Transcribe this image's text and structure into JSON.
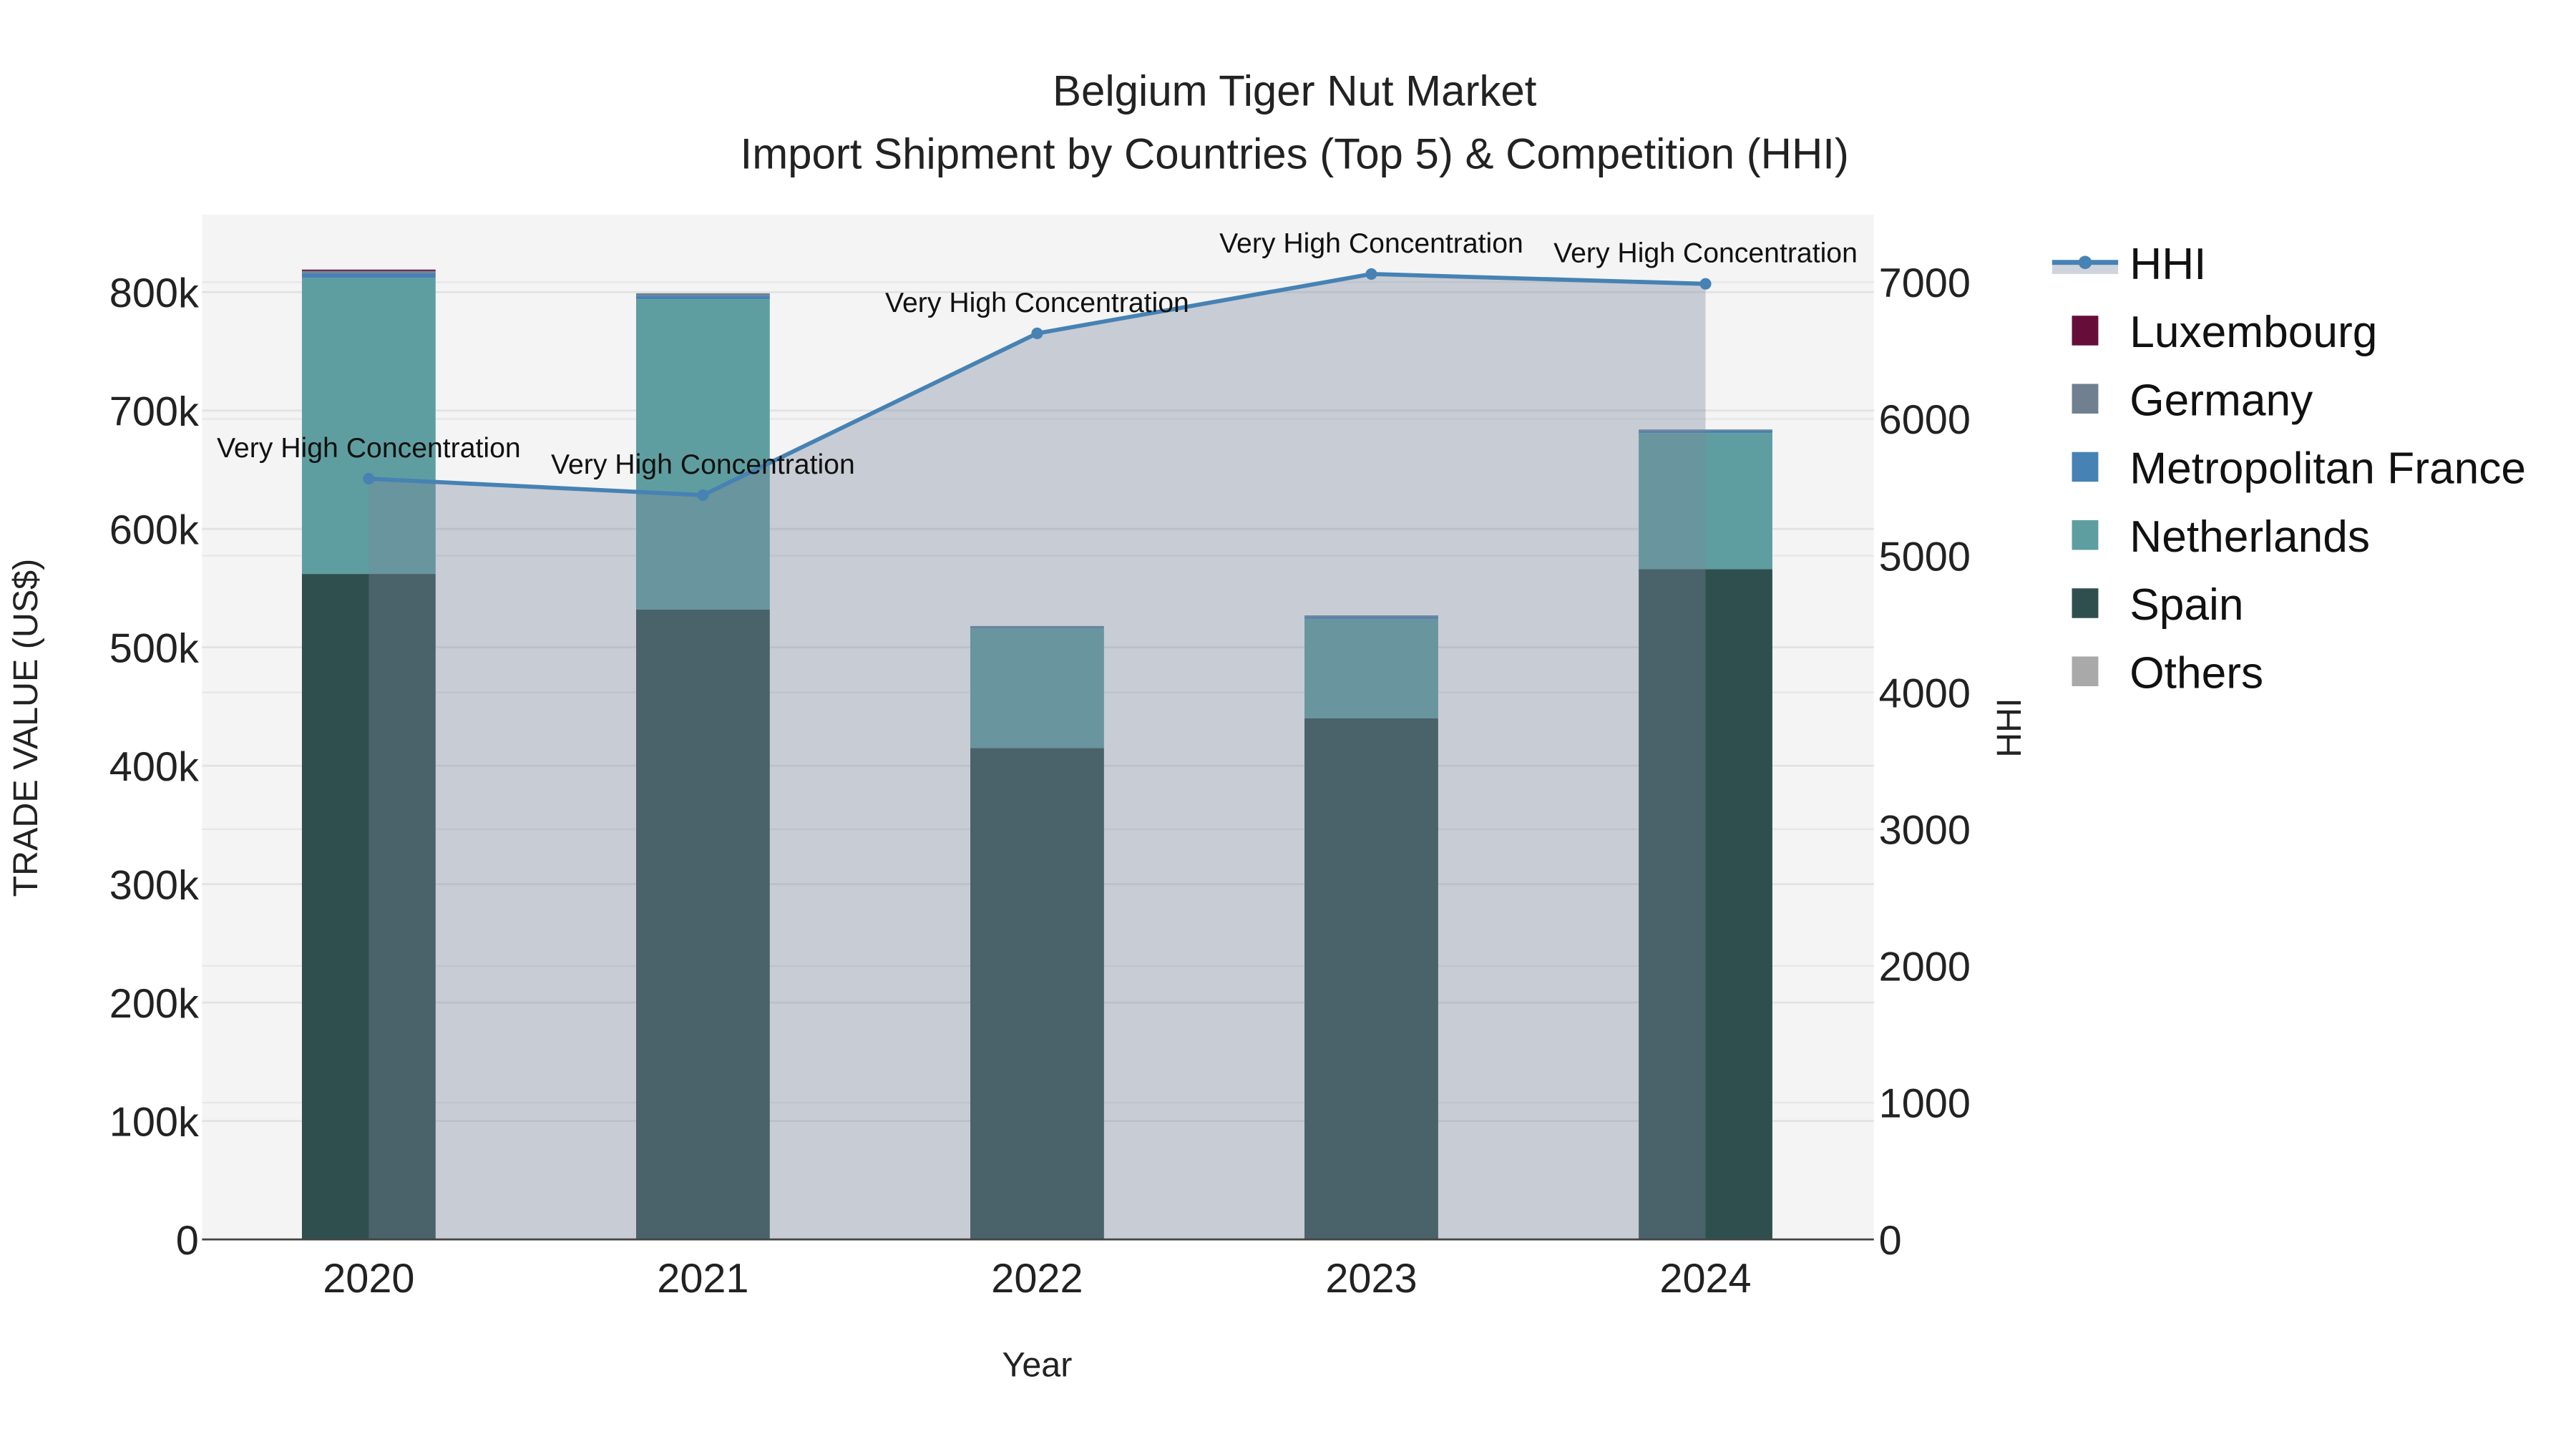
{
  "chart_data": {
    "type": "bar",
    "barmode": "stack",
    "title": "Belgium Tiger Nut Market",
    "subtitle": "Import Shipment by Countries (Top 5) & Competition (HHI)",
    "xlabel": "Year",
    "ylabel": "TRADE VALUE (US$)",
    "y2label": "HHI",
    "categories": [
      "2020",
      "2021",
      "2022",
      "2023",
      "2024"
    ],
    "ylim": [
      0,
      860000
    ],
    "y_ticks": [
      0,
      100000,
      200000,
      300000,
      400000,
      500000,
      600000,
      700000,
      800000
    ],
    "y_tick_labels": [
      "0",
      "100k",
      "200k",
      "300k",
      "400k",
      "500k",
      "600k",
      "700k",
      "800k"
    ],
    "y2lim": [
      0,
      7500
    ],
    "y2_ticks": [
      0,
      1000,
      2000,
      3000,
      4000,
      5000,
      6000,
      7000
    ],
    "y2_tick_labels": [
      "0",
      "1000",
      "2000",
      "3000",
      "4000",
      "5000",
      "6000",
      "7000"
    ],
    "series": [
      {
        "name": "Spain",
        "color": "#2F4F4F",
        "values": [
          562000,
          532000,
          415000,
          440000,
          566000
        ]
      },
      {
        "name": "Netherlands",
        "color": "#5F9EA0",
        "values": [
          250000,
          262000,
          101000,
          84000,
          115000
        ]
      },
      {
        "name": "Metropolitan France",
        "color": "#4682B4",
        "values": [
          4000,
          3000,
          1000,
          2000,
          2000
        ]
      },
      {
        "name": "Germany",
        "color": "#708090",
        "values": [
          2000,
          2000,
          1000,
          1000,
          1000
        ]
      },
      {
        "name": "Luxembourg",
        "color": "#660E3A",
        "values": [
          1000,
          0,
          0,
          0,
          0
        ]
      },
      {
        "name": "Others",
        "color": "#A9A9A9",
        "values": [
          0,
          0,
          0,
          0,
          0
        ]
      }
    ],
    "hhi": {
      "name": "HHI",
      "color": "#4682B4",
      "values": [
        5563,
        5443,
        6626,
        7060,
        6988
      ],
      "annotations": [
        "Very High Concentration",
        "Very High Concentration",
        "Very High Concentration",
        "Very High Concentration",
        "Very High Concentration"
      ]
    },
    "legend_order": [
      "HHI",
      "Luxembourg",
      "Germany",
      "Metropolitan France",
      "Netherlands",
      "Spain",
      "Others"
    ],
    "legend_position": "right",
    "grid": true
  }
}
